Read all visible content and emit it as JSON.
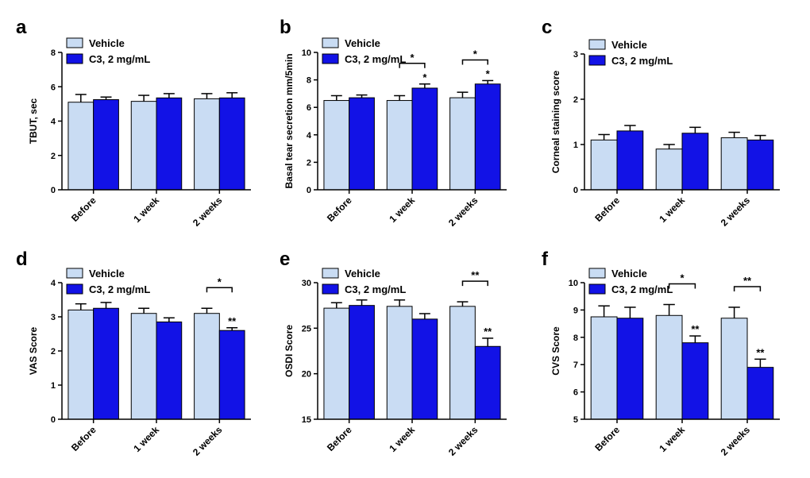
{
  "colors": {
    "vehicle": "#c9dcf3",
    "treatment": "#1212e6",
    "axis": "#000000"
  },
  "chart_data": [
    {
      "type": "bar",
      "panel": "a",
      "categories": [
        "Before",
        "1 week",
        "2 weeks"
      ],
      "ylabel": "TBUT, sec",
      "ylim": [
        0,
        8
      ],
      "yticks": [
        0,
        2,
        4,
        6,
        8
      ],
      "legend": "top-left",
      "grid": false,
      "series": [
        {
          "name": "Vehicle",
          "values": [
            5.1,
            5.15,
            5.3
          ],
          "errors": [
            0.45,
            0.35,
            0.3
          ]
        },
        {
          "name": "C3, 2 mg/mL",
          "values": [
            5.25,
            5.35,
            5.35
          ],
          "errors": [
            0.15,
            0.25,
            0.3
          ]
        }
      ],
      "annotations": []
    },
    {
      "type": "bar",
      "panel": "b",
      "categories": [
        "Before",
        "1 week",
        "2 weeks"
      ],
      "ylabel": "Basal tear secretion mm/5min",
      "ylim": [
        0,
        10
      ],
      "yticks": [
        0,
        2,
        4,
        6,
        8,
        10
      ],
      "legend": "top-left",
      "grid": false,
      "series": [
        {
          "name": "Vehicle",
          "values": [
            6.5,
            6.5,
            6.7
          ],
          "errors": [
            0.35,
            0.35,
            0.4
          ]
        },
        {
          "name": "C3, 2 mg/mL",
          "values": [
            6.7,
            7.4,
            7.7
          ],
          "errors": [
            0.2,
            0.3,
            0.25
          ]
        }
      ],
      "annotations": [
        {
          "category": 1,
          "text": "*",
          "type": "bracket"
        },
        {
          "category": 1,
          "text": "*",
          "type": "bar"
        },
        {
          "category": 2,
          "text": "*",
          "type": "bracket"
        },
        {
          "category": 2,
          "text": "*",
          "type": "bar"
        }
      ]
    },
    {
      "type": "bar",
      "panel": "c",
      "categories": [
        "Before",
        "1 week",
        "2 weeks"
      ],
      "ylabel": "Corneal staining score",
      "ylim": [
        0,
        3
      ],
      "yticks": [
        0,
        1,
        2,
        3
      ],
      "legend": "top-left",
      "grid": false,
      "series": [
        {
          "name": "Vehicle",
          "values": [
            1.1,
            0.9,
            1.15
          ],
          "errors": [
            0.12,
            0.1,
            0.12
          ]
        },
        {
          "name": "C3, 2 mg/mL",
          "values": [
            1.3,
            1.25,
            1.1
          ],
          "errors": [
            0.12,
            0.13,
            0.1
          ]
        }
      ],
      "annotations": []
    },
    {
      "type": "bar",
      "panel": "d",
      "categories": [
        "Before",
        "1 week",
        "2 weeks"
      ],
      "ylabel": "VAS Score",
      "ylim": [
        0,
        4
      ],
      "yticks": [
        0,
        1,
        2,
        3,
        4
      ],
      "legend": "top-left",
      "grid": false,
      "series": [
        {
          "name": "Vehicle",
          "values": [
            3.2,
            3.1,
            3.1
          ],
          "errors": [
            0.18,
            0.15,
            0.15
          ]
        },
        {
          "name": "C3, 2 mg/mL",
          "values": [
            3.25,
            2.85,
            2.6
          ],
          "errors": [
            0.17,
            0.12,
            0.08
          ]
        }
      ],
      "annotations": [
        {
          "category": 2,
          "text": "*",
          "type": "bracket"
        },
        {
          "category": 2,
          "text": "**",
          "type": "bar"
        }
      ]
    },
    {
      "type": "bar",
      "panel": "e",
      "categories": [
        "Before",
        "1 week",
        "2 weeks"
      ],
      "ylabel": "OSDI Score",
      "ylim": [
        15,
        30
      ],
      "yticks": [
        15,
        20,
        25,
        30
      ],
      "legend": "top-left",
      "grid": false,
      "series": [
        {
          "name": "Vehicle",
          "values": [
            27.2,
            27.4,
            27.4
          ],
          "errors": [
            0.6,
            0.7,
            0.5
          ]
        },
        {
          "name": "C3, 2 mg/mL",
          "values": [
            27.5,
            26.0,
            23.0
          ],
          "errors": [
            0.6,
            0.6,
            0.9
          ]
        }
      ],
      "annotations": [
        {
          "category": 2,
          "text": "**",
          "type": "bracket"
        },
        {
          "category": 2,
          "text": "**",
          "type": "bar"
        }
      ]
    },
    {
      "type": "bar",
      "panel": "f",
      "categories": [
        "Before",
        "1 week",
        "2 weeks"
      ],
      "ylabel": "CVS Score",
      "ylim": [
        5,
        10
      ],
      "yticks": [
        5,
        6,
        7,
        8,
        9,
        10
      ],
      "legend": "top-left",
      "grid": false,
      "series": [
        {
          "name": "Vehicle",
          "values": [
            8.75,
            8.8,
            8.7
          ],
          "errors": [
            0.4,
            0.4,
            0.4
          ]
        },
        {
          "name": "C3, 2 mg/mL",
          "values": [
            8.7,
            7.8,
            6.9
          ],
          "errors": [
            0.4,
            0.25,
            0.3
          ]
        }
      ],
      "annotations": [
        {
          "category": 1,
          "text": "*",
          "type": "bracket"
        },
        {
          "category": 1,
          "text": "**",
          "type": "bar"
        },
        {
          "category": 2,
          "text": "**",
          "type": "bracket"
        },
        {
          "category": 2,
          "text": "**",
          "type": "bar"
        }
      ]
    }
  ]
}
